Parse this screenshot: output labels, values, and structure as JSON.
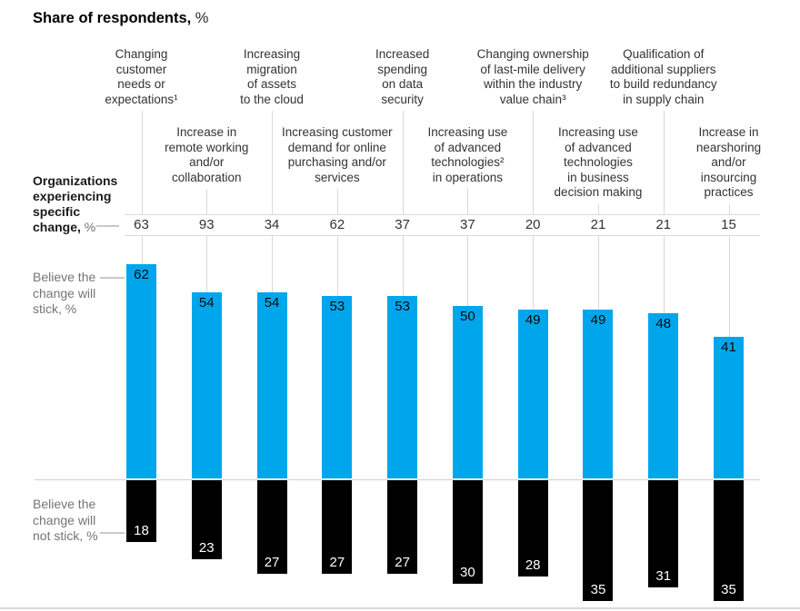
{
  "title": {
    "text": "Share of respondents,",
    "suffix": " %"
  },
  "row_headers": {
    "organizations": {
      "lines": [
        "Organizations",
        "experiencing",
        "specific",
        "change,"
      ],
      "suffix": " %"
    },
    "stick": {
      "lines": [
        "Believe the",
        "change will",
        "stick, %"
      ]
    },
    "not_stick": {
      "lines": [
        "Believe the",
        "change will",
        "not stick, %"
      ]
    }
  },
  "colors": {
    "bar_blue": "#00A6EC",
    "bar_black": "#000000",
    "grid": "#D9D9D9",
    "side_label_gray": "#757575",
    "text_dark": "#333333"
  },
  "chart_data": {
    "type": "bar",
    "subtype": "diverging-vertical-columns",
    "title": "Share of respondents, %",
    "unit": "%",
    "legend_position": "left-row-headers",
    "grid": "vertical-leader-lines",
    "categories": [
      {
        "label": "Changing customer needs or expectations¹",
        "row": 1,
        "lines": [
          "Changing",
          "customer",
          "needs or",
          "expectations¹"
        ]
      },
      {
        "label": "Increase in remote working and/or collaboration",
        "row": 2,
        "lines": [
          "Increase in",
          "remote working",
          "and/or",
          "collaboration"
        ]
      },
      {
        "label": "Increasing migration of assets to the cloud",
        "row": 1,
        "lines": [
          "Increasing",
          "migration",
          "of assets",
          "to the cloud"
        ]
      },
      {
        "label": "Increasing customer demand for online purchasing and/or services",
        "row": 2,
        "lines": [
          "Increasing customer",
          "demand for online",
          "purchasing and/or",
          "services"
        ]
      },
      {
        "label": "Increased spending on data security",
        "row": 1,
        "lines": [
          "Increased",
          "spending",
          "on data",
          "security"
        ]
      },
      {
        "label": "Increasing use of advanced technologies² in operations",
        "row": 2,
        "lines": [
          "Increasing use",
          "of advanced",
          "technologies²",
          "in operations"
        ]
      },
      {
        "label": "Changing ownership of last-mile delivery within the industry value chain³",
        "row": 1,
        "lines": [
          "Changing ownership",
          "of last-mile delivery",
          "within the industry",
          "value chain³"
        ]
      },
      {
        "label": "Increasing use of advanced technologies in business decision making",
        "row": 2,
        "lines": [
          "Increasing use",
          "of advanced",
          "technologies",
          "in business",
          "decision making"
        ]
      },
      {
        "label": "Qualification of additional suppliers to build redundancy in supply chain",
        "row": 1,
        "lines": [
          "Qualification of",
          "additional suppliers",
          "to build redundancy",
          "in supply chain"
        ]
      },
      {
        "label": "Increase in nearshoring and/or insourcing practices",
        "row": 2,
        "lines": [
          "Increase in",
          "nearshoring",
          "and/or",
          "insourcing",
          "practices"
        ]
      }
    ],
    "series": [
      {
        "name": "Organizations experiencing specific change, %",
        "values": [
          63,
          93,
          34,
          62,
          37,
          37,
          20,
          21,
          21,
          15
        ]
      },
      {
        "name": "Believe the change will stick, %",
        "color": "#00A6EC",
        "values": [
          62,
          54,
          54,
          53,
          53,
          50,
          49,
          49,
          48,
          41
        ]
      },
      {
        "name": "Believe the change will not stick, %",
        "color": "#000000",
        "values": [
          18,
          23,
          27,
          27,
          27,
          30,
          28,
          35,
          31,
          35
        ]
      }
    ]
  }
}
